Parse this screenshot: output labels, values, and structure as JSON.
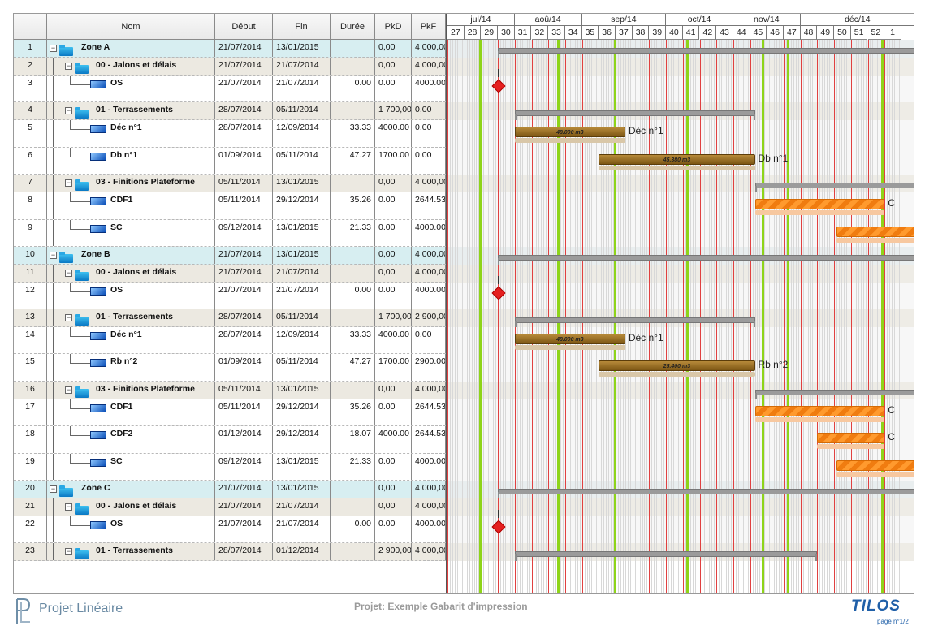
{
  "columns": {
    "id": "",
    "name": "Nom",
    "start": "Début",
    "end": "Fin",
    "duration": "Durée",
    "pkd": "PkD",
    "pkf": "PkF"
  },
  "timeline": {
    "months": [
      "jul/14",
      "aoû/14",
      "sep/14",
      "oct/14",
      "nov/14",
      "déc/14"
    ],
    "weeks": [
      "27",
      "28",
      "29",
      "30",
      "31",
      "32",
      "33",
      "34",
      "35",
      "36",
      "37",
      "38",
      "39",
      "40",
      "41",
      "42",
      "43",
      "44",
      "45",
      "46",
      "47",
      "48",
      "49",
      "50",
      "51",
      "52",
      "1"
    ]
  },
  "rows": [
    {
      "id": "1",
      "name": "Zone A",
      "level": 0,
      "kind": "zone",
      "start": "21/07/2014",
      "end": "13/01/2015",
      "duration": "",
      "pkd": "0,00",
      "pkf": "4 000,00"
    },
    {
      "id": "2",
      "name": "00 - Jalons et délais",
      "level": 1,
      "kind": "group",
      "start": "21/07/2014",
      "end": "21/07/2014",
      "duration": "",
      "pkd": "0,00",
      "pkf": "4 000,00"
    },
    {
      "id": "3",
      "name": "OS",
      "level": 2,
      "kind": "task",
      "start": "21/07/2014",
      "end": "21/07/2014",
      "duration": "0.00",
      "pkd": "0.00",
      "pkf": "4000.00"
    },
    {
      "id": "4",
      "name": "01 - Terrassements",
      "level": 1,
      "kind": "group",
      "start": "28/07/2014",
      "end": "05/11/2014",
      "duration": "",
      "pkd": "1 700,00",
      "pkf": "0,00"
    },
    {
      "id": "5",
      "name": "Déc n°1",
      "level": 2,
      "kind": "task",
      "start": "28/07/2014",
      "end": "12/09/2014",
      "duration": "33.33",
      "pkd": "4000.00",
      "pkf": "0.00"
    },
    {
      "id": "6",
      "name": "Db n°1",
      "level": 2,
      "kind": "task",
      "start": "01/09/2014",
      "end": "05/11/2014",
      "duration": "47.27",
      "pkd": "1700.00",
      "pkf": "0.00"
    },
    {
      "id": "7",
      "name": "03 - Finitions Plateforme",
      "level": 1,
      "kind": "group",
      "start": "05/11/2014",
      "end": "13/01/2015",
      "duration": "",
      "pkd": "0,00",
      "pkf": "4 000,00"
    },
    {
      "id": "8",
      "name": "CDF1",
      "level": 2,
      "kind": "task",
      "start": "05/11/2014",
      "end": "29/12/2014",
      "duration": "35.26",
      "pkd": "0.00",
      "pkf": "2644.53"
    },
    {
      "id": "9",
      "name": "SC",
      "level": 2,
      "kind": "task",
      "start": "09/12/2014",
      "end": "13/01/2015",
      "duration": "21.33",
      "pkd": "0.00",
      "pkf": "4000.00"
    },
    {
      "id": "10",
      "name": "Zone B",
      "level": 0,
      "kind": "zone",
      "start": "21/07/2014",
      "end": "13/01/2015",
      "duration": "",
      "pkd": "0,00",
      "pkf": "4 000,00"
    },
    {
      "id": "11",
      "name": "00 - Jalons et délais",
      "level": 1,
      "kind": "group",
      "start": "21/07/2014",
      "end": "21/07/2014",
      "duration": "",
      "pkd": "0,00",
      "pkf": "4 000,00"
    },
    {
      "id": "12",
      "name": "OS",
      "level": 2,
      "kind": "task",
      "start": "21/07/2014",
      "end": "21/07/2014",
      "duration": "0.00",
      "pkd": "0.00",
      "pkf": "4000.00"
    },
    {
      "id": "13",
      "name": "01 - Terrassements",
      "level": 1,
      "kind": "group",
      "start": "28/07/2014",
      "end": "05/11/2014",
      "duration": "",
      "pkd": "1 700,00",
      "pkf": "2 900,00"
    },
    {
      "id": "14",
      "name": "Déc n°1",
      "level": 2,
      "kind": "task",
      "start": "28/07/2014",
      "end": "12/09/2014",
      "duration": "33.33",
      "pkd": "4000.00",
      "pkf": "0.00"
    },
    {
      "id": "15",
      "name": "Rb n°2",
      "level": 2,
      "kind": "task",
      "start": "01/09/2014",
      "end": "05/11/2014",
      "duration": "47.27",
      "pkd": "1700.00",
      "pkf": "2900.00"
    },
    {
      "id": "16",
      "name": "03 - Finitions Plateforme",
      "level": 1,
      "kind": "group",
      "start": "05/11/2014",
      "end": "13/01/2015",
      "duration": "",
      "pkd": "0,00",
      "pkf": "4 000,00"
    },
    {
      "id": "17",
      "name": "CDF1",
      "level": 2,
      "kind": "task",
      "start": "05/11/2014",
      "end": "29/12/2014",
      "duration": "35.26",
      "pkd": "0.00",
      "pkf": "2644.53"
    },
    {
      "id": "18",
      "name": "CDF2",
      "level": 2,
      "kind": "task",
      "start": "01/12/2014",
      "end": "29/12/2014",
      "duration": "18.07",
      "pkd": "4000.00",
      "pkf": "2644.53"
    },
    {
      "id": "19",
      "name": "SC",
      "level": 2,
      "kind": "task",
      "start": "09/12/2014",
      "end": "13/01/2015",
      "duration": "21.33",
      "pkd": "0.00",
      "pkf": "4000.00"
    },
    {
      "id": "20",
      "name": "Zone C",
      "level": 0,
      "kind": "zone",
      "start": "21/07/2014",
      "end": "13/01/2015",
      "duration": "",
      "pkd": "0,00",
      "pkf": "4 000,00"
    },
    {
      "id": "21",
      "name": "00 - Jalons et délais",
      "level": 1,
      "kind": "group",
      "start": "21/07/2014",
      "end": "21/07/2014",
      "duration": "",
      "pkd": "0,00",
      "pkf": "4 000,00"
    },
    {
      "id": "22",
      "name": "OS",
      "level": 2,
      "kind": "task",
      "start": "21/07/2014",
      "end": "21/07/2014",
      "duration": "0.00",
      "pkd": "0.00",
      "pkf": "4000.00"
    },
    {
      "id": "23",
      "name": "01 - Terrassements",
      "level": 1,
      "kind": "group",
      "start": "28/07/2014",
      "end": "01/12/2014",
      "duration": "",
      "pkd": "2 900,00",
      "pkf": "4 000,00"
    }
  ],
  "bars": [
    {
      "row": 0,
      "type": "summary",
      "start": "21/07/2014",
      "end": "13/01/2015"
    },
    {
      "row": 2,
      "type": "milestone",
      "start": "21/07/2014"
    },
    {
      "row": 3,
      "type": "summary",
      "start": "28/07/2014",
      "end": "05/11/2014"
    },
    {
      "row": 4,
      "type": "task",
      "color": "brown",
      "start": "28/07/2014",
      "end": "12/09/2014",
      "label": "48.000 m3",
      "caption": "Déc n°1"
    },
    {
      "row": 5,
      "type": "task",
      "color": "brown",
      "start": "01/09/2014",
      "end": "05/11/2014",
      "label": "45.380 m3",
      "caption": "Db n°1"
    },
    {
      "row": 6,
      "type": "summary",
      "start": "05/11/2014",
      "end": "13/01/2015"
    },
    {
      "row": 7,
      "type": "task",
      "color": "orange",
      "start": "05/11/2014",
      "end": "29/12/2014",
      "label": "",
      "caption": "C"
    },
    {
      "row": 8,
      "type": "task",
      "color": "orange",
      "start": "09/12/2014",
      "end": "13/01/2015",
      "label": "",
      "caption": ""
    },
    {
      "row": 9,
      "type": "summary",
      "start": "21/07/2014",
      "end": "13/01/2015"
    },
    {
      "row": 11,
      "type": "milestone",
      "start": "21/07/2014"
    },
    {
      "row": 12,
      "type": "summary",
      "start": "28/07/2014",
      "end": "05/11/2014"
    },
    {
      "row": 13,
      "type": "task",
      "color": "brown",
      "start": "28/07/2014",
      "end": "12/09/2014",
      "label": "48.000 m3",
      "caption": "Déc n°1"
    },
    {
      "row": 14,
      "type": "task",
      "color": "brown",
      "start": "01/09/2014",
      "end": "05/11/2014",
      "label": "25.400 m3",
      "caption": "Rb n°2"
    },
    {
      "row": 15,
      "type": "summary",
      "start": "05/11/2014",
      "end": "13/01/2015"
    },
    {
      "row": 16,
      "type": "task",
      "color": "orange",
      "start": "05/11/2014",
      "end": "29/12/2014",
      "label": "",
      "caption": "C"
    },
    {
      "row": 17,
      "type": "task",
      "color": "orange",
      "start": "01/12/2014",
      "end": "29/12/2014",
      "label": "",
      "caption": "C"
    },
    {
      "row": 18,
      "type": "task",
      "color": "orange",
      "start": "09/12/2014",
      "end": "13/01/2015",
      "label": "",
      "caption": ""
    },
    {
      "row": 19,
      "type": "summary",
      "start": "21/07/2014",
      "end": "13/01/2015"
    },
    {
      "row": 21,
      "type": "milestone",
      "start": "21/07/2014"
    },
    {
      "row": 22,
      "type": "summary",
      "start": "28/07/2014",
      "end": "01/12/2014"
    }
  ],
  "colors": {
    "zone_row": "#d7eef1",
    "group_row": "#ece9e1",
    "milestone": "#e52020",
    "green_marker": "#8ed419",
    "red_line": "#e04040"
  },
  "footer": {
    "brand": "Projet Linéaire",
    "project": "Projet: Exemple Gabarit d'impression",
    "logo": "TILOS",
    "page": "page n°1/2"
  }
}
